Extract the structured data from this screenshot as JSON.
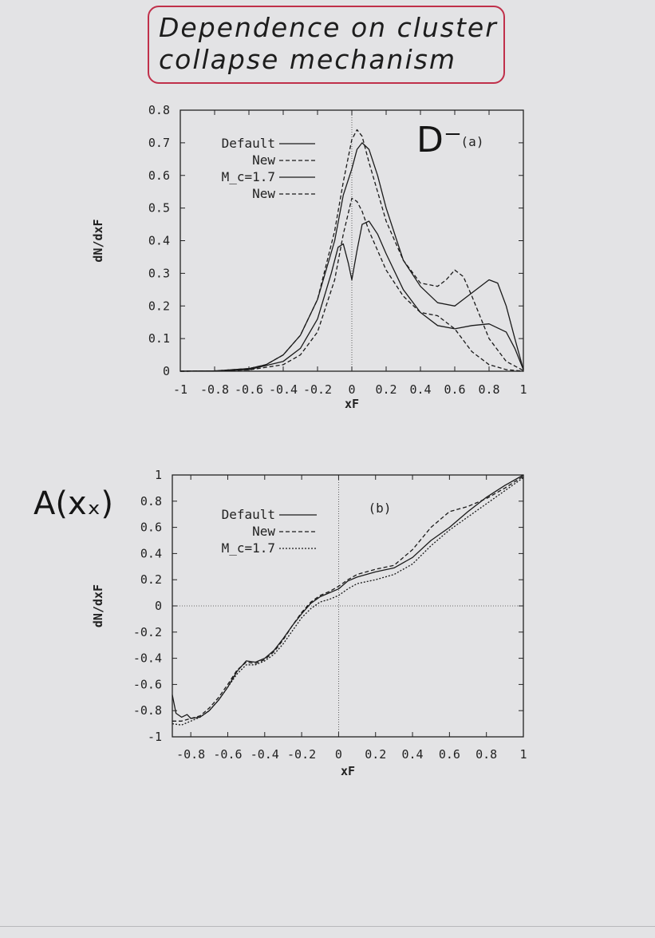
{
  "handwritten": {
    "title_lines": [
      "Dependence on cluster",
      "collapse mechanism"
    ],
    "label_top": "D⁻",
    "label_bottom": "A(xₓ)"
  },
  "chart_data": [
    {
      "type": "line",
      "panel_label": "(a)",
      "xlabel": "xF",
      "ylabel": "dN/dxF",
      "xlim": [
        -1,
        1
      ],
      "ylim": [
        0,
        0.8
      ],
      "x_ticks": [
        "-1",
        "-0.8",
        "-0.6",
        "-0.4",
        "-0.2",
        "0",
        "0.2",
        "0.4",
        "0.6",
        "0.8",
        "1"
      ],
      "y_ticks": [
        "0",
        "0.1",
        "0.2",
        "0.3",
        "0.4",
        "0.5",
        "0.6",
        "0.7",
        "0.8"
      ],
      "legend_position": "top-left",
      "series": [
        {
          "name": "Default",
          "style": "solid",
          "x": [
            -1,
            -0.8,
            -0.6,
            -0.5,
            -0.4,
            -0.3,
            -0.2,
            -0.1,
            -0.05,
            0,
            0.03,
            0.06,
            0.1,
            0.15,
            0.2,
            0.3,
            0.4,
            0.5,
            0.6,
            0.7,
            0.8,
            0.85,
            0.9,
            0.95,
            1
          ],
          "y": [
            0,
            0.001,
            0.008,
            0.02,
            0.05,
            0.11,
            0.22,
            0.4,
            0.54,
            0.62,
            0.68,
            0.7,
            0.68,
            0.6,
            0.5,
            0.34,
            0.26,
            0.21,
            0.2,
            0.24,
            0.28,
            0.27,
            0.2,
            0.1,
            0.005
          ]
        },
        {
          "name": "New",
          "style": "dashed",
          "x": [
            -1,
            -0.8,
            -0.6,
            -0.5,
            -0.4,
            -0.3,
            -0.2,
            -0.1,
            -0.05,
            0,
            0.03,
            0.06,
            0.1,
            0.15,
            0.2,
            0.3,
            0.4,
            0.5,
            0.55,
            0.6,
            0.65,
            0.7,
            0.8,
            0.9,
            1
          ],
          "y": [
            0,
            0.001,
            0.008,
            0.02,
            0.05,
            0.11,
            0.22,
            0.43,
            0.58,
            0.71,
            0.74,
            0.72,
            0.64,
            0.55,
            0.46,
            0.34,
            0.27,
            0.26,
            0.28,
            0.31,
            0.29,
            0.23,
            0.1,
            0.03,
            0.002
          ]
        },
        {
          "name": "M_c=1.7",
          "style": "solid",
          "x": [
            -1,
            -0.8,
            -0.6,
            -0.4,
            -0.3,
            -0.2,
            -0.12,
            -0.08,
            -0.05,
            -0.02,
            0,
            0.03,
            0.06,
            0.1,
            0.15,
            0.2,
            0.3,
            0.4,
            0.5,
            0.6,
            0.7,
            0.8,
            0.9,
            0.95,
            1
          ],
          "y": [
            0,
            0.001,
            0.005,
            0.03,
            0.07,
            0.16,
            0.3,
            0.38,
            0.39,
            0.33,
            0.28,
            0.37,
            0.45,
            0.46,
            0.42,
            0.36,
            0.25,
            0.18,
            0.14,
            0.13,
            0.14,
            0.145,
            0.12,
            0.07,
            0.005
          ]
        },
        {
          "name": "New",
          "style": "dashed",
          "x": [
            -1,
            -0.8,
            -0.6,
            -0.4,
            -0.3,
            -0.2,
            -0.1,
            -0.05,
            0,
            0.03,
            0.06,
            0.1,
            0.15,
            0.2,
            0.3,
            0.4,
            0.5,
            0.6,
            0.7,
            0.8,
            0.9,
            1
          ],
          "y": [
            0,
            0.001,
            0.004,
            0.02,
            0.05,
            0.12,
            0.28,
            0.42,
            0.53,
            0.52,
            0.49,
            0.43,
            0.37,
            0.31,
            0.23,
            0.18,
            0.17,
            0.13,
            0.06,
            0.02,
            0.005,
            0
          ]
        }
      ]
    },
    {
      "type": "line",
      "panel_label": "(b)",
      "xlabel": "xF",
      "ylabel": "dN/dxF",
      "xlim": [
        -0.9,
        1
      ],
      "ylim": [
        -1,
        1
      ],
      "x_ticks": [
        "-0.8",
        "-0.6",
        "-0.4",
        "-0.2",
        "0",
        "0.2",
        "0.4",
        "0.6",
        "0.8",
        "1"
      ],
      "y_ticks": [
        "-1",
        "-0.8",
        "-0.6",
        "-0.4",
        "-0.2",
        "0",
        "0.2",
        "0.4",
        "0.6",
        "0.8",
        "1"
      ],
      "legend_position": "top-left",
      "series": [
        {
          "name": "Default",
          "style": "solid",
          "x": [
            -0.9,
            -0.88,
            -0.85,
            -0.82,
            -0.8,
            -0.75,
            -0.7,
            -0.65,
            -0.6,
            -0.55,
            -0.5,
            -0.45,
            -0.4,
            -0.35,
            -0.3,
            -0.25,
            -0.2,
            -0.15,
            -0.1,
            -0.05,
            0,
            0.05,
            0.1,
            0.2,
            0.3,
            0.4,
            0.5,
            0.6,
            0.7,
            0.8,
            0.9,
            1
          ],
          "y": [
            -0.68,
            -0.82,
            -0.85,
            -0.83,
            -0.86,
            -0.85,
            -0.8,
            -0.72,
            -0.62,
            -0.5,
            -0.42,
            -0.43,
            -0.4,
            -0.34,
            -0.25,
            -0.15,
            -0.06,
            0.02,
            0.07,
            0.1,
            0.13,
            0.19,
            0.22,
            0.26,
            0.29,
            0.37,
            0.5,
            0.6,
            0.72,
            0.83,
            0.92,
            1.0
          ]
        },
        {
          "name": "New",
          "style": "dashed",
          "x": [
            -0.9,
            -0.85,
            -0.8,
            -0.75,
            -0.7,
            -0.65,
            -0.6,
            -0.55,
            -0.5,
            -0.45,
            -0.4,
            -0.35,
            -0.3,
            -0.25,
            -0.2,
            -0.15,
            -0.1,
            -0.05,
            0,
            0.05,
            0.1,
            0.2,
            0.3,
            0.4,
            0.5,
            0.6,
            0.7,
            0.8,
            0.9,
            1
          ],
          "y": [
            -0.88,
            -0.88,
            -0.86,
            -0.84,
            -0.78,
            -0.7,
            -0.6,
            -0.49,
            -0.43,
            -0.44,
            -0.41,
            -0.35,
            -0.26,
            -0.15,
            -0.05,
            0.03,
            0.08,
            0.11,
            0.15,
            0.2,
            0.24,
            0.28,
            0.31,
            0.43,
            0.6,
            0.72,
            0.76,
            0.82,
            0.9,
            0.99
          ]
        },
        {
          "name": "M_c=1.7",
          "style": "dotted",
          "x": [
            -0.9,
            -0.85,
            -0.8,
            -0.75,
            -0.7,
            -0.65,
            -0.6,
            -0.55,
            -0.5,
            -0.45,
            -0.4,
            -0.35,
            -0.3,
            -0.25,
            -0.2,
            -0.15,
            -0.1,
            -0.05,
            0,
            0.05,
            0.1,
            0.2,
            0.3,
            0.4,
            0.5,
            0.6,
            0.7,
            0.8,
            0.9,
            1
          ],
          "y": [
            -0.9,
            -0.91,
            -0.88,
            -0.85,
            -0.8,
            -0.72,
            -0.62,
            -0.52,
            -0.45,
            -0.45,
            -0.42,
            -0.37,
            -0.29,
            -0.19,
            -0.09,
            -0.02,
            0.03,
            0.05,
            0.08,
            0.13,
            0.17,
            0.2,
            0.24,
            0.32,
            0.46,
            0.58,
            0.68,
            0.78,
            0.88,
            0.98
          ]
        }
      ]
    }
  ]
}
